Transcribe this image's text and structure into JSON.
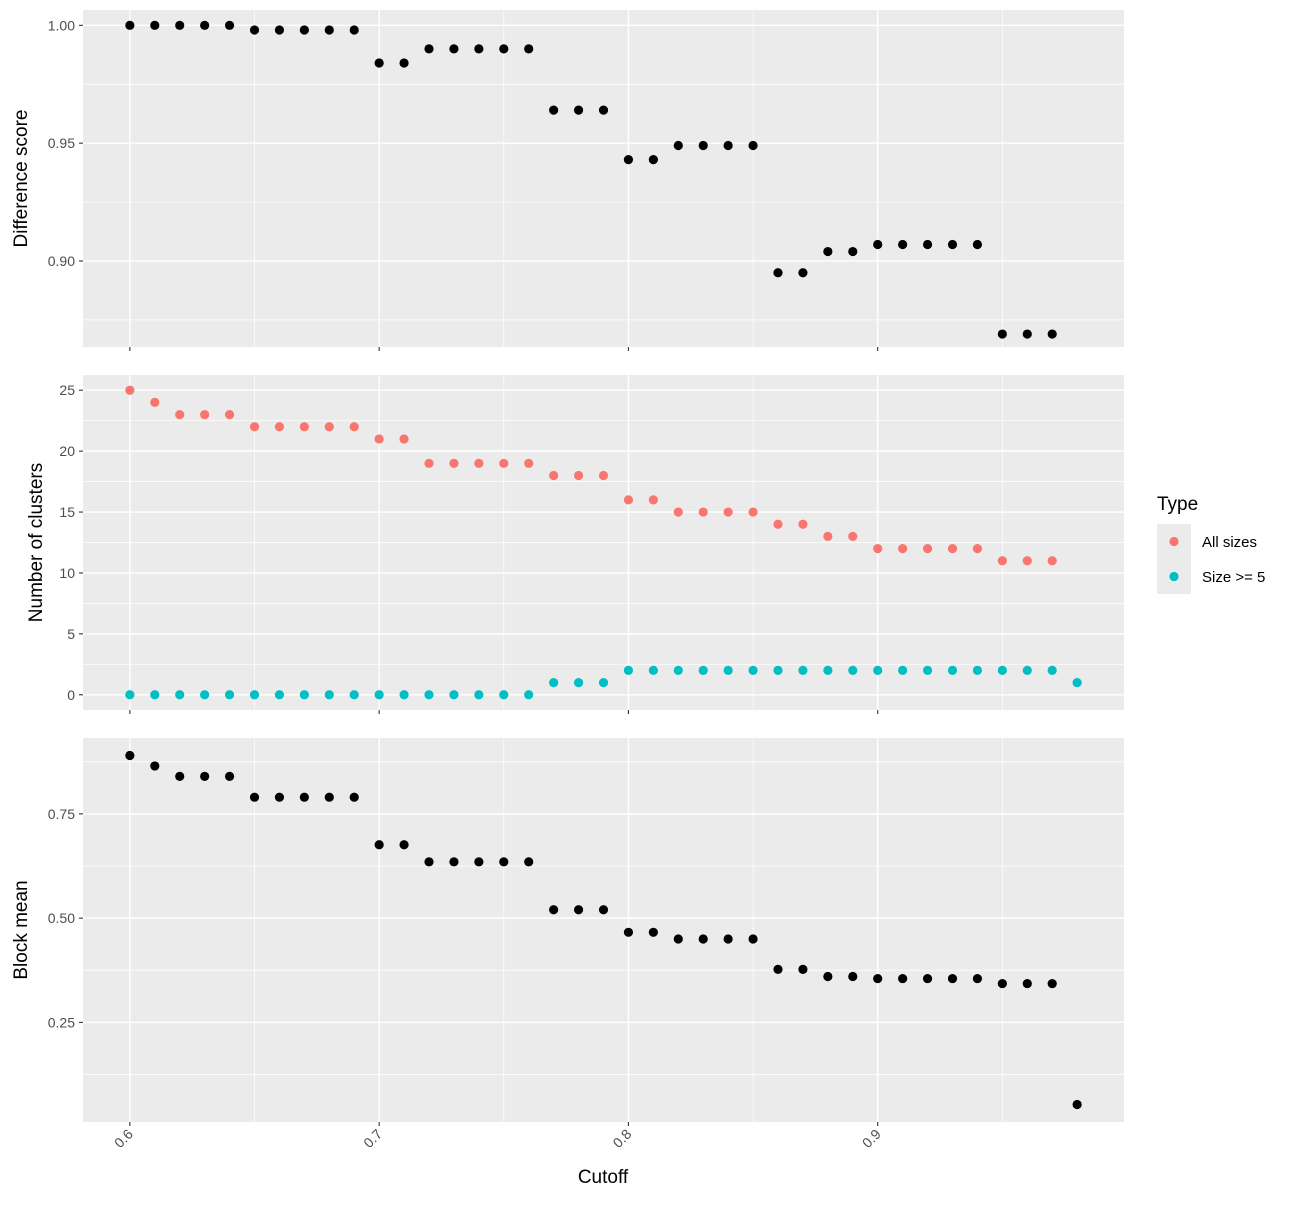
{
  "chart_data": {
    "type": "scatter",
    "xlabel": "Cutoff",
    "x_ticks": [
      0.6,
      0.7,
      0.8,
      0.9
    ],
    "x_tick_labels": [
      "0.6",
      "0.7",
      "0.8",
      "0.9"
    ],
    "xlim": [
      0.5812,
      0.9988
    ],
    "grid": true,
    "panels": [
      {
        "id": "difference",
        "ylabel": "Difference score",
        "ylim": [
          0.8635,
          1.0065
        ],
        "y_ticks": [
          0.9,
          0.95,
          1.0
        ],
        "y_tick_labels": [
          "0.90",
          "0.95",
          "1.00"
        ],
        "series": [
          {
            "x": [
              0.6,
              0.61,
              0.62,
              0.63,
              0.64,
              0.65,
              0.66,
              0.67,
              0.68,
              0.69,
              0.7,
              0.71,
              0.72,
              0.73,
              0.74,
              0.75,
              0.76,
              0.77,
              0.78,
              0.79,
              0.8,
              0.81,
              0.82,
              0.83,
              0.84,
              0.85,
              0.86,
              0.87,
              0.88,
              0.89,
              0.9,
              0.91,
              0.92,
              0.93,
              0.94,
              0.95,
              0.96,
              0.97
            ],
            "y": [
              1.0,
              1.0,
              1.0,
              1.0,
              1.0,
              0.998,
              0.998,
              0.998,
              0.998,
              0.998,
              0.984,
              0.984,
              0.99,
              0.99,
              0.99,
              0.99,
              0.99,
              0.964,
              0.964,
              0.964,
              0.943,
              0.943,
              0.949,
              0.949,
              0.949,
              0.949,
              0.895,
              0.895,
              0.904,
              0.904,
              0.907,
              0.907,
              0.907,
              0.907,
              0.907,
              0.869,
              0.869,
              0.869
            ],
            "color": "#000000"
          }
        ]
      },
      {
        "id": "clusters",
        "ylabel": "Number of clusters",
        "ylim": [
          -1.25,
          26.25
        ],
        "y_ticks": [
          0,
          5,
          10,
          15,
          20,
          25
        ],
        "y_tick_labels": [
          "0",
          "5",
          "10",
          "15",
          "20",
          "25"
        ],
        "series": [
          {
            "name": "All sizes",
            "color": "#F8766D",
            "x": [
              0.6,
              0.61,
              0.62,
              0.63,
              0.64,
              0.65,
              0.66,
              0.67,
              0.68,
              0.69,
              0.7,
              0.71,
              0.72,
              0.73,
              0.74,
              0.75,
              0.76,
              0.77,
              0.78,
              0.79,
              0.8,
              0.81,
              0.82,
              0.83,
              0.84,
              0.85,
              0.86,
              0.87,
              0.88,
              0.89,
              0.9,
              0.91,
              0.92,
              0.93,
              0.94,
              0.95,
              0.96,
              0.97
            ],
            "y": [
              25,
              24,
              23,
              23,
              23,
              22,
              22,
              22,
              22,
              22,
              21,
              21,
              19,
              19,
              19,
              19,
              19,
              18,
              18,
              18,
              16,
              16,
              15,
              15,
              15,
              15,
              14,
              14,
              13,
              13,
              12,
              12,
              12,
              12,
              12,
              11,
              11,
              11
            ]
          },
          {
            "name": "Size >= 5",
            "color": "#00BFC4",
            "x": [
              0.6,
              0.61,
              0.62,
              0.63,
              0.64,
              0.65,
              0.66,
              0.67,
              0.68,
              0.69,
              0.7,
              0.71,
              0.72,
              0.73,
              0.74,
              0.75,
              0.76,
              0.77,
              0.78,
              0.79,
              0.8,
              0.81,
              0.82,
              0.83,
              0.84,
              0.85,
              0.86,
              0.87,
              0.88,
              0.89,
              0.9,
              0.91,
              0.92,
              0.93,
              0.94,
              0.95,
              0.96,
              0.97,
              0.98
            ],
            "y": [
              0,
              0,
              0,
              0,
              0,
              0,
              0,
              0,
              0,
              0,
              0,
              0,
              0,
              0,
              0,
              0,
              0,
              1,
              1,
              1,
              2,
              2,
              2,
              2,
              2,
              2,
              2,
              2,
              2,
              2,
              2,
              2,
              2,
              2,
              2,
              2,
              2,
              2,
              1
            ]
          }
        ]
      },
      {
        "id": "blockmean",
        "ylabel": "Block mean",
        "ylim": [
          0.011,
          0.932
        ],
        "y_ticks": [
          0.25,
          0.5,
          0.75
        ],
        "y_tick_labels": [
          "0.25",
          "0.50",
          "0.75"
        ],
        "series": [
          {
            "x": [
              0.6,
              0.61,
              0.62,
              0.63,
              0.64,
              0.65,
              0.66,
              0.67,
              0.68,
              0.69,
              0.7,
              0.71,
              0.72,
              0.73,
              0.74,
              0.75,
              0.76,
              0.77,
              0.78,
              0.79,
              0.8,
              0.81,
              0.82,
              0.83,
              0.84,
              0.85,
              0.86,
              0.87,
              0.88,
              0.89,
              0.9,
              0.91,
              0.92,
              0.93,
              0.94,
              0.95,
              0.96,
              0.97,
              0.98
            ],
            "y": [
              0.89,
              0.865,
              0.84,
              0.84,
              0.84,
              0.79,
              0.79,
              0.79,
              0.79,
              0.79,
              0.676,
              0.676,
              0.635,
              0.635,
              0.635,
              0.635,
              0.635,
              0.52,
              0.52,
              0.52,
              0.466,
              0.466,
              0.45,
              0.45,
              0.45,
              0.45,
              0.377,
              0.377,
              0.36,
              0.36,
              0.355,
              0.355,
              0.355,
              0.355,
              0.355,
              0.343,
              0.343,
              0.343,
              0.053
            ],
            "color": "#000000"
          }
        ]
      }
    ],
    "legend": {
      "title": "Type",
      "placement": "right",
      "items": [
        {
          "label": "All sizes",
          "color": "#F8766D"
        },
        {
          "label": "Size >= 5",
          "color": "#00BFC4"
        }
      ]
    },
    "panel_background": "#EBEBEB",
    "grid_color": "#FFFFFF"
  }
}
